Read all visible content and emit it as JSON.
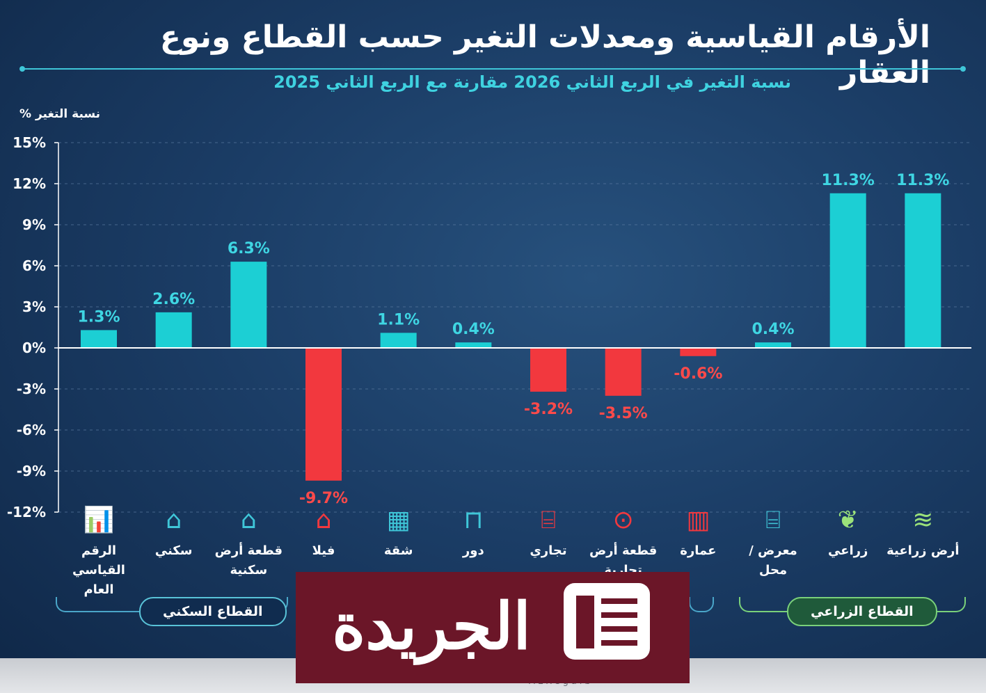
{
  "title": "الأرقام القياسية ومعدلات التغير حسب القطاع ونوع العقار",
  "subtitle": "نسبة التغير في الربع الثاني 2026 مقارنة مع الربع الثاني 2025",
  "colors": {
    "positive": "#1ccfd4",
    "negative": "#f2383e",
    "positive_label": "#3fd6e3",
    "negative_label": "#ff4a4a",
    "grid": "#5a7aa0"
  },
  "chart_data": {
    "type": "bar",
    "ylabel": "نسبة التغير %",
    "ylim": [
      -12,
      15
    ],
    "yticks": [
      15,
      12,
      9,
      6,
      3,
      0,
      -3,
      -6,
      -9,
      -12
    ],
    "ytick_labels": [
      "15%",
      "12%",
      "9%",
      "6%",
      "3%",
      "0%",
      "-3%",
      "-6%",
      "-9%",
      "-12%"
    ],
    "grid": true,
    "categories": [
      "الرقم القياسي العام",
      "سكني",
      "قطعة أرض سكنية",
      "فيلا",
      "شقة",
      "دور",
      "تجاري",
      "قطعة أرض تجارية",
      "عمارة",
      "معرض / محل",
      "زراعي",
      "أرض زراعية"
    ],
    "values": [
      1.3,
      2.6,
      6.3,
      -9.7,
      1.1,
      0.4,
      -3.2,
      -3.5,
      -0.6,
      0.4,
      11.3,
      11.3
    ],
    "value_labels": [
      "1.3%",
      "2.6%",
      "6.3%",
      "-9.7%",
      "1.1%",
      "0.4%",
      "-3.2%",
      "-3.5%",
      "-0.6%",
      "0.4%",
      "11.3%",
      "11.3%"
    ]
  },
  "categories_display": [
    {
      "line1": "الرقم",
      "line2": "القياسي العام",
      "icon": "bar-growth-icon",
      "glyph": "📊"
    },
    {
      "line1": "سكني",
      "line2": "",
      "icon": "house-icon",
      "glyph": "⌂"
    },
    {
      "line1": "قطعة أرض",
      "line2": "سكنية",
      "icon": "house-plot-icon",
      "glyph": "⌂"
    },
    {
      "line1": "فيلا",
      "line2": "",
      "icon": "villa-icon",
      "glyph": "⌂"
    },
    {
      "line1": "شقة",
      "line2": "",
      "icon": "apartment-building-icon",
      "glyph": "▦"
    },
    {
      "line1": "دور",
      "line2": "",
      "icon": "door-icon",
      "glyph": "⊓"
    },
    {
      "line1": "تجاري",
      "line2": "",
      "icon": "storefront-icon",
      "glyph": "⌸"
    },
    {
      "line1": "قطعة أرض",
      "line2": "تجارية",
      "icon": "location-pin-icon",
      "glyph": "⊙"
    },
    {
      "line1": "عمارة",
      "line2": "",
      "icon": "office-building-icon",
      "glyph": "▥"
    },
    {
      "line1": "معرض /",
      "line2": "محل",
      "icon": "shop-icon",
      "glyph": "⌸"
    },
    {
      "line1": "زراعي",
      "line2": "",
      "icon": "plant-icon",
      "glyph": "❦"
    },
    {
      "line1": "أرض زراعية",
      "line2": "",
      "icon": "field-icon",
      "glyph": "≋"
    }
  ],
  "sector_labels": {
    "residential": "القطاع السكني",
    "agricultural": "القطاع الزراعي"
  },
  "logo": {
    "name": "الجريدة"
  },
  "footer": {
    "text": "ALRegaib"
  }
}
